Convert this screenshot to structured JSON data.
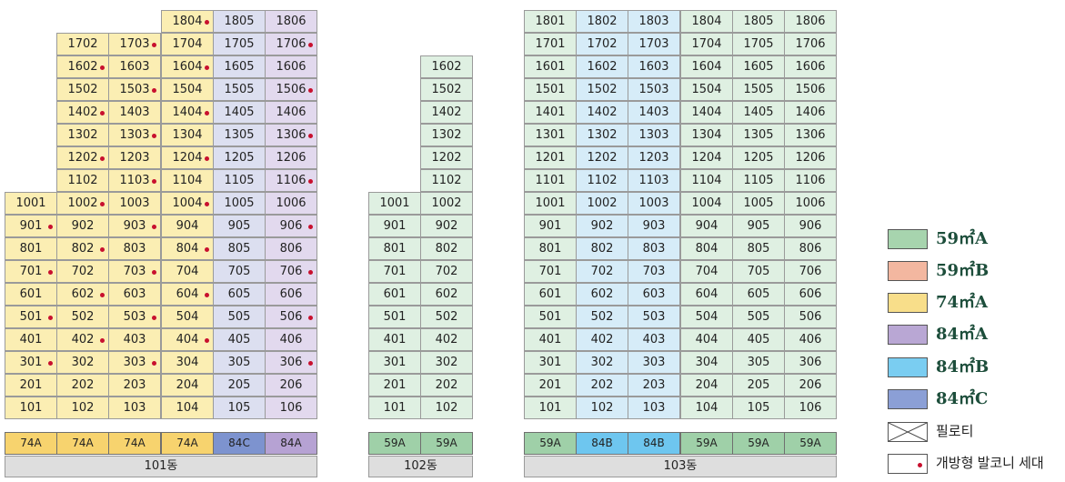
{
  "buildings": [
    {
      "label": "101동",
      "columns": [
        {
          "type": "74A",
          "color": "#fbeeb3",
          "floors": [
            1,
            2,
            3,
            4,
            5,
            6,
            7,
            8,
            9,
            10
          ],
          "balcony": [
            3,
            5,
            7,
            9
          ]
        },
        {
          "type": "74A",
          "color": "#fbeeb3",
          "floors": [
            1,
            2,
            3,
            4,
            5,
            6,
            7,
            8,
            9,
            10,
            11,
            12,
            13,
            14,
            15,
            16,
            17
          ],
          "balcony": [
            4,
            6,
            8,
            10,
            12,
            14,
            16
          ]
        },
        {
          "type": "74A",
          "color": "#fbeeb3",
          "floors": [
            1,
            2,
            3,
            4,
            5,
            6,
            7,
            8,
            9,
            10,
            11,
            12,
            13,
            14,
            15,
            16,
            17
          ],
          "balcony": [
            3,
            5,
            7,
            9,
            11,
            13,
            15,
            17
          ]
        },
        {
          "type": "74A",
          "color": "#fbeeb3",
          "floors": [
            1,
            2,
            3,
            4,
            5,
            6,
            7,
            8,
            9,
            10,
            11,
            12,
            13,
            14,
            15,
            16,
            17,
            18
          ],
          "balcony": [
            4,
            6,
            8,
            10,
            12,
            14,
            16,
            18
          ]
        },
        {
          "type": "84C",
          "color": "#dcdff0",
          "floors": [
            1,
            2,
            3,
            4,
            5,
            6,
            7,
            8,
            9,
            10,
            11,
            12,
            13,
            14,
            15,
            16,
            17,
            18
          ],
          "balcony": []
        },
        {
          "type": "84A",
          "color": "#e2d9ee",
          "floors": [
            1,
            2,
            3,
            4,
            5,
            6,
            7,
            8,
            9,
            10,
            11,
            12,
            13,
            14,
            15,
            16,
            17,
            18
          ],
          "balcony": [
            3,
            5,
            7,
            9,
            11,
            13,
            15,
            17
          ]
        }
      ]
    },
    {
      "label": "102동",
      "columns": [
        {
          "type": "59A",
          "color": "#dff0e2",
          "floors": [
            1,
            2,
            3,
            4,
            5,
            6,
            7,
            8,
            9,
            10
          ],
          "balcony": []
        },
        {
          "type": "59A",
          "color": "#dff0e2",
          "floors": [
            1,
            2,
            3,
            4,
            5,
            6,
            7,
            8,
            9,
            10,
            11,
            12,
            13,
            14,
            15,
            16
          ],
          "balcony": []
        }
      ]
    },
    {
      "label": "103동",
      "columns": [
        {
          "type": "59A",
          "color": "#dff0e2",
          "floors": [
            1,
            2,
            3,
            4,
            5,
            6,
            7,
            8,
            9,
            10,
            11,
            12,
            13,
            14,
            15,
            16,
            17,
            18
          ],
          "balcony": []
        },
        {
          "type": "84B",
          "color": "#d6ecf8",
          "floors": [
            1,
            2,
            3,
            4,
            5,
            6,
            7,
            8,
            9,
            10,
            11,
            12,
            13,
            14,
            15,
            16,
            17,
            18
          ],
          "balcony": []
        },
        {
          "type": "84B",
          "color": "#d6ecf8",
          "floors": [
            1,
            2,
            3,
            4,
            5,
            6,
            7,
            8,
            9,
            10,
            11,
            12,
            13,
            14,
            15,
            16,
            17,
            18
          ],
          "balcony": []
        },
        {
          "type": "59A",
          "color": "#dff0e2",
          "floors": [
            1,
            2,
            3,
            4,
            5,
            6,
            7,
            8,
            9,
            10,
            11,
            12,
            13,
            14,
            15,
            16,
            17,
            18
          ],
          "balcony": []
        },
        {
          "type": "59A",
          "color": "#dff0e2",
          "floors": [
            1,
            2,
            3,
            4,
            5,
            6,
            7,
            8,
            9,
            10,
            11,
            12,
            13,
            14,
            15,
            16,
            17,
            18
          ],
          "balcony": []
        },
        {
          "type": "59A",
          "color": "#dff0e2",
          "floors": [
            1,
            2,
            3,
            4,
            5,
            6,
            7,
            8,
            9,
            10,
            11,
            12,
            13,
            14,
            15,
            16,
            17,
            18
          ],
          "balcony": []
        }
      ]
    }
  ],
  "type_colors": {
    "59A": "#9fd0a8",
    "59B": "#f2b6a0",
    "74A": "#f7d36e",
    "84A": "#b6a2d3",
    "84B": "#6ec6ef",
    "84C": "#7d93cf"
  },
  "legend": [
    {
      "label": "59㎡A",
      "color": "#a7d4ae",
      "kind": "swatch"
    },
    {
      "label": "59㎡B",
      "color": "#f3b7a0",
      "kind": "swatch"
    },
    {
      "label": "74㎡A",
      "color": "#f8de8a",
      "kind": "swatch"
    },
    {
      "label": "84㎡A",
      "color": "#b9a7d4",
      "kind": "swatch"
    },
    {
      "label": "84㎡B",
      "color": "#7acdf1",
      "kind": "swatch"
    },
    {
      "label": "84㎡C",
      "color": "#8b9fd6",
      "kind": "swatch"
    },
    {
      "label": "필로티",
      "color": "#ffffff",
      "kind": "pilotis"
    },
    {
      "label": "개방형 발코니 세대",
      "color": "#ffffff",
      "kind": "balcony-dot"
    }
  ]
}
